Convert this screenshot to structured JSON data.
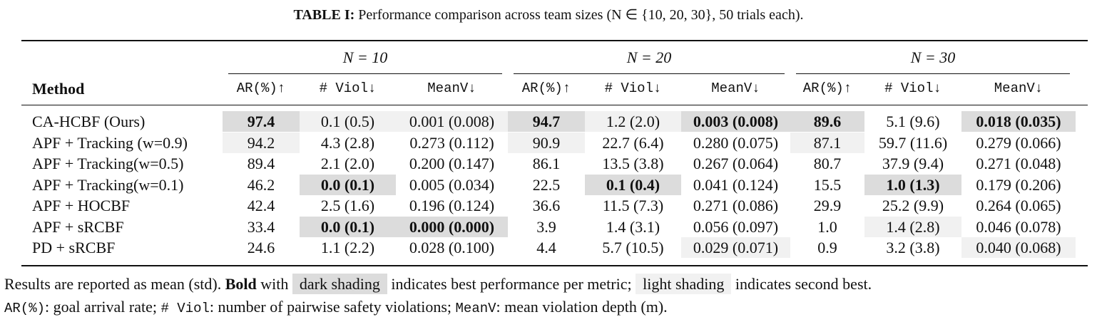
{
  "caption": {
    "label": "TABLE I:",
    "text": "Performance comparison across team sizes (N ∈ {10, 20, 30}, 50 trials each)."
  },
  "groups": [
    "N = 10",
    "N = 20",
    "N = 30"
  ],
  "headers": {
    "method": "Method",
    "metrics": [
      "AR(%)↑",
      "# Viol↓",
      "MeanV↓"
    ]
  },
  "rows": [
    {
      "method": "CA-HCBF (Ours)",
      "cells": [
        {
          "v": "97.4",
          "s": "best"
        },
        {
          "v": "0.1 (0.5)",
          "s": "second"
        },
        {
          "v": "0.001 (0.008)",
          "s": "second"
        },
        {
          "v": "94.7",
          "s": "best"
        },
        {
          "v": "1.2 (2.0)",
          "s": "second"
        },
        {
          "v": "0.003 (0.008)",
          "s": "best"
        },
        {
          "v": "89.6",
          "s": "best"
        },
        {
          "v": "5.1 (9.6)",
          "s": ""
        },
        {
          "v": "0.018 (0.035)",
          "s": "best"
        }
      ]
    },
    {
      "method": "APF + Tracking (w=0.9)",
      "cells": [
        {
          "v": "94.2",
          "s": "second"
        },
        {
          "v": "4.3 (2.8)",
          "s": ""
        },
        {
          "v": "0.273 (0.112)",
          "s": ""
        },
        {
          "v": "90.9",
          "s": "second"
        },
        {
          "v": "22.7 (6.4)",
          "s": ""
        },
        {
          "v": "0.280 (0.075)",
          "s": ""
        },
        {
          "v": "87.1",
          "s": "second"
        },
        {
          "v": "59.7 (11.6)",
          "s": ""
        },
        {
          "v": "0.279 (0.066)",
          "s": ""
        }
      ]
    },
    {
      "method": "APF + Tracking(w=0.5)",
      "cells": [
        {
          "v": "89.4",
          "s": ""
        },
        {
          "v": "2.1 (2.0)",
          "s": ""
        },
        {
          "v": "0.200 (0.147)",
          "s": ""
        },
        {
          "v": "86.1",
          "s": ""
        },
        {
          "v": "13.5 (3.8)",
          "s": ""
        },
        {
          "v": "0.267 (0.064)",
          "s": ""
        },
        {
          "v": "80.7",
          "s": ""
        },
        {
          "v": "37.9 (9.4)",
          "s": ""
        },
        {
          "v": "0.271 (0.048)",
          "s": ""
        }
      ]
    },
    {
      "method": "APF + Tracking(w=0.1)",
      "cells": [
        {
          "v": "46.2",
          "s": ""
        },
        {
          "v": "0.0 (0.1)",
          "s": "best"
        },
        {
          "v": "0.005 (0.034)",
          "s": ""
        },
        {
          "v": "22.5",
          "s": ""
        },
        {
          "v": "0.1 (0.4)",
          "s": "best"
        },
        {
          "v": "0.041 (0.124)",
          "s": ""
        },
        {
          "v": "15.5",
          "s": ""
        },
        {
          "v": "1.0 (1.3)",
          "s": "best"
        },
        {
          "v": "0.179 (0.206)",
          "s": ""
        }
      ]
    },
    {
      "method": "APF + HOCBF",
      "cells": [
        {
          "v": "42.4",
          "s": ""
        },
        {
          "v": "2.5 (1.6)",
          "s": ""
        },
        {
          "v": "0.196 (0.124)",
          "s": ""
        },
        {
          "v": "36.6",
          "s": ""
        },
        {
          "v": "11.5 (7.3)",
          "s": ""
        },
        {
          "v": "0.271 (0.086)",
          "s": ""
        },
        {
          "v": "29.9",
          "s": ""
        },
        {
          "v": "25.2 (9.9)",
          "s": ""
        },
        {
          "v": "0.264 (0.065)",
          "s": ""
        }
      ]
    },
    {
      "method": "APF + sRCBF",
      "cells": [
        {
          "v": "33.4",
          "s": ""
        },
        {
          "v": "0.0 (0.1)",
          "s": "best"
        },
        {
          "v": "0.000 (0.000)",
          "s": "best"
        },
        {
          "v": "3.9",
          "s": ""
        },
        {
          "v": "1.4 (3.1)",
          "s": ""
        },
        {
          "v": "0.056 (0.097)",
          "s": ""
        },
        {
          "v": "1.0",
          "s": ""
        },
        {
          "v": "1.4 (2.8)",
          "s": "second"
        },
        {
          "v": "0.046 (0.078)",
          "s": ""
        }
      ]
    },
    {
      "method": "PD + sRCBF",
      "cells": [
        {
          "v": "24.6",
          "s": ""
        },
        {
          "v": "1.1 (2.2)",
          "s": ""
        },
        {
          "v": "0.028 (0.100)",
          "s": ""
        },
        {
          "v": "4.4",
          "s": ""
        },
        {
          "v": "5.7 (10.5)",
          "s": ""
        },
        {
          "v": "0.029 (0.071)",
          "s": "second"
        },
        {
          "v": "0.9",
          "s": ""
        },
        {
          "v": "3.2 (3.8)",
          "s": ""
        },
        {
          "v": "0.040 (0.068)",
          "s": "second"
        }
      ]
    }
  ],
  "notes": {
    "line1_a": "Results are reported as mean (std).",
    "line1_bold": "Bold",
    "line1_b": "with",
    "dark": "dark shading",
    "line1_c": "indicates best performance per metric;",
    "light": "light shading",
    "line1_d": "indicates second best.",
    "ar_code": "AR(%)",
    "ar_text": ": goal arrival rate;",
    "viol_code": "# Viol",
    "viol_text": ": number of pairwise safety violations;",
    "meanv_code": "MeanV",
    "meanv_text": ": mean violation depth (m)."
  },
  "colors": {
    "best_shading": "#dcdcdc",
    "second_shading": "#f1f1f1"
  }
}
